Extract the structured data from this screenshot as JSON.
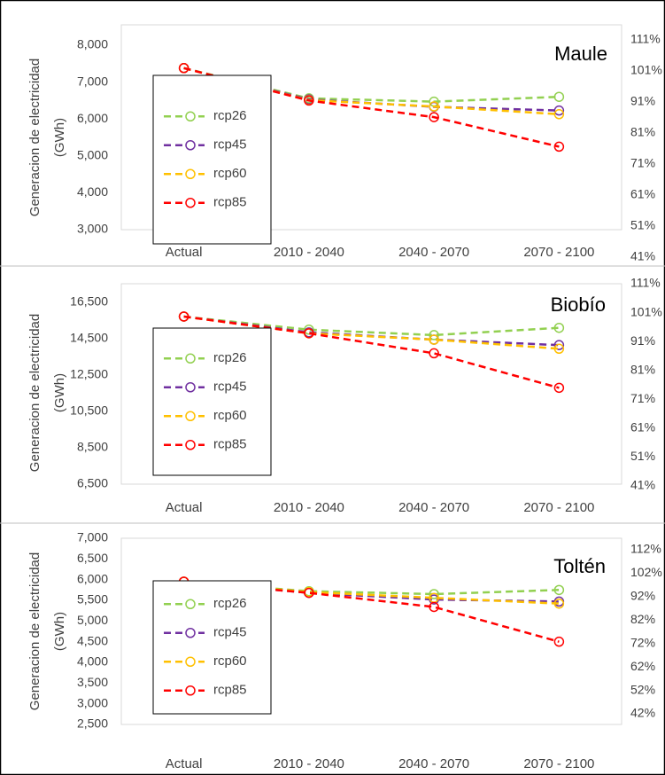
{
  "chart_data": [
    {
      "type": "line",
      "title": "Maule",
      "y_label": [
        "Generacion de electricidad",
        "(GWh)"
      ],
      "categories": [
        "Actual",
        "2010 - 2040",
        "2040 - 2070",
        "2070 - 2100"
      ],
      "series": [
        {
          "name": "rcp26",
          "color": "#92d050",
          "values": [
            7380,
            6560,
            6470,
            6600
          ]
        },
        {
          "name": "rcp45",
          "color": "#7030a0",
          "values": [
            7380,
            6530,
            6330,
            6230
          ]
        },
        {
          "name": "rcp60",
          "color": "#ffc000",
          "values": [
            7380,
            6510,
            6340,
            6130
          ]
        },
        {
          "name": "rcp85",
          "color": "#ff0000",
          "values": [
            7380,
            6500,
            6050,
            5250
          ]
        }
      ],
      "ylim": [
        3000,
        8000
      ],
      "yticks": [
        {
          "value": 3000,
          "label": "3,000"
        },
        {
          "value": 4000,
          "label": "4,000"
        },
        {
          "value": 5000,
          "label": "5,000"
        },
        {
          "value": 6000,
          "label": "6,000"
        },
        {
          "value": 7000,
          "label": "7,000"
        },
        {
          "value": 8000,
          "label": "8,000"
        }
      ],
      "y2lim": [
        41,
        111
      ],
      "y2ticks": [
        {
          "value": 41,
          "label": "41%"
        },
        {
          "value": 51,
          "label": "51%"
        },
        {
          "value": 61,
          "label": "61%"
        },
        {
          "value": 71,
          "label": "71%"
        },
        {
          "value": 81,
          "label": "81%"
        },
        {
          "value": 91,
          "label": "91%"
        },
        {
          "value": 101,
          "label": "101%"
        },
        {
          "value": 111,
          "label": "111%"
        }
      ]
    },
    {
      "type": "line",
      "title": "Biobío",
      "y_label": [
        "Generacion de electricidad",
        "(GWh)"
      ],
      "categories": [
        "Actual",
        "2010 - 2040",
        "2040 - 2070",
        "2070 - 2100"
      ],
      "series": [
        {
          "name": "rcp26",
          "color": "#92d050",
          "values": [
            15720,
            15000,
            14700,
            15100
          ]
        },
        {
          "name": "rcp45",
          "color": "#7030a0",
          "values": [
            15720,
            14850,
            14450,
            14150
          ]
        },
        {
          "name": "rcp60",
          "color": "#ffc000",
          "values": [
            15720,
            14800,
            14450,
            13950
          ]
        },
        {
          "name": "rcp85",
          "color": "#ff0000",
          "values": [
            15720,
            14800,
            13700,
            11800
          ]
        }
      ],
      "ylim": [
        6500,
        16500
      ],
      "yticks": [
        {
          "value": 6500,
          "label": "6,500"
        },
        {
          "value": 8500,
          "label": "8,500"
        },
        {
          "value": 10500,
          "label": "10,500"
        },
        {
          "value": 12500,
          "label": "12,500"
        },
        {
          "value": 14500,
          "label": "14,500"
        },
        {
          "value": 16500,
          "label": "16,500"
        }
      ],
      "y2lim": [
        41,
        111
      ],
      "y2ticks": [
        {
          "value": 41,
          "label": "41%"
        },
        {
          "value": 51,
          "label": "51%"
        },
        {
          "value": 61,
          "label": "61%"
        },
        {
          "value": 71,
          "label": "71%"
        },
        {
          "value": 81,
          "label": "81%"
        },
        {
          "value": 91,
          "label": "91%"
        },
        {
          "value": 101,
          "label": "101%"
        },
        {
          "value": 111,
          "label": "111%"
        }
      ]
    },
    {
      "type": "line",
      "title": "Toltén",
      "y_label": [
        "Generacion de electricidad",
        "(GWh)"
      ],
      "categories": [
        "Actual",
        "2010 - 2040",
        "2040 - 2070",
        "2070 - 2100"
      ],
      "series": [
        {
          "name": "rcp26",
          "color": "#92d050",
          "values": [
            5950,
            5720,
            5650,
            5750
          ]
        },
        {
          "name": "rcp45",
          "color": "#7030a0",
          "values": [
            5950,
            5680,
            5520,
            5470
          ]
        },
        {
          "name": "rcp60",
          "color": "#ffc000",
          "values": [
            5950,
            5700,
            5560,
            5420
          ]
        },
        {
          "name": "rcp85",
          "color": "#ff0000",
          "values": [
            5950,
            5680,
            5340,
            4500
          ]
        }
      ],
      "ylim": [
        2500,
        7000
      ],
      "yticks": [
        {
          "value": 2500,
          "label": "2,500"
        },
        {
          "value": 3000,
          "label": "3,000"
        },
        {
          "value": 3500,
          "label": "3,500"
        },
        {
          "value": 4000,
          "label": "4,000"
        },
        {
          "value": 4500,
          "label": "4,500"
        },
        {
          "value": 5000,
          "label": "5,000"
        },
        {
          "value": 5500,
          "label": "5,500"
        },
        {
          "value": 6000,
          "label": "6,000"
        },
        {
          "value": 6500,
          "label": "6,500"
        },
        {
          "value": 7000,
          "label": "7,000"
        }
      ],
      "y2lim": [
        42,
        112
      ],
      "y2ticks": [
        {
          "value": 42,
          "label": "42%"
        },
        {
          "value": 52,
          "label": "52%"
        },
        {
          "value": 62,
          "label": "62%"
        },
        {
          "value": 72,
          "label": "72%"
        },
        {
          "value": 82,
          "label": "82%"
        },
        {
          "value": 92,
          "label": "92%"
        },
        {
          "value": 102,
          "label": "102%"
        },
        {
          "value": 112,
          "label": "112%"
        }
      ]
    }
  ]
}
